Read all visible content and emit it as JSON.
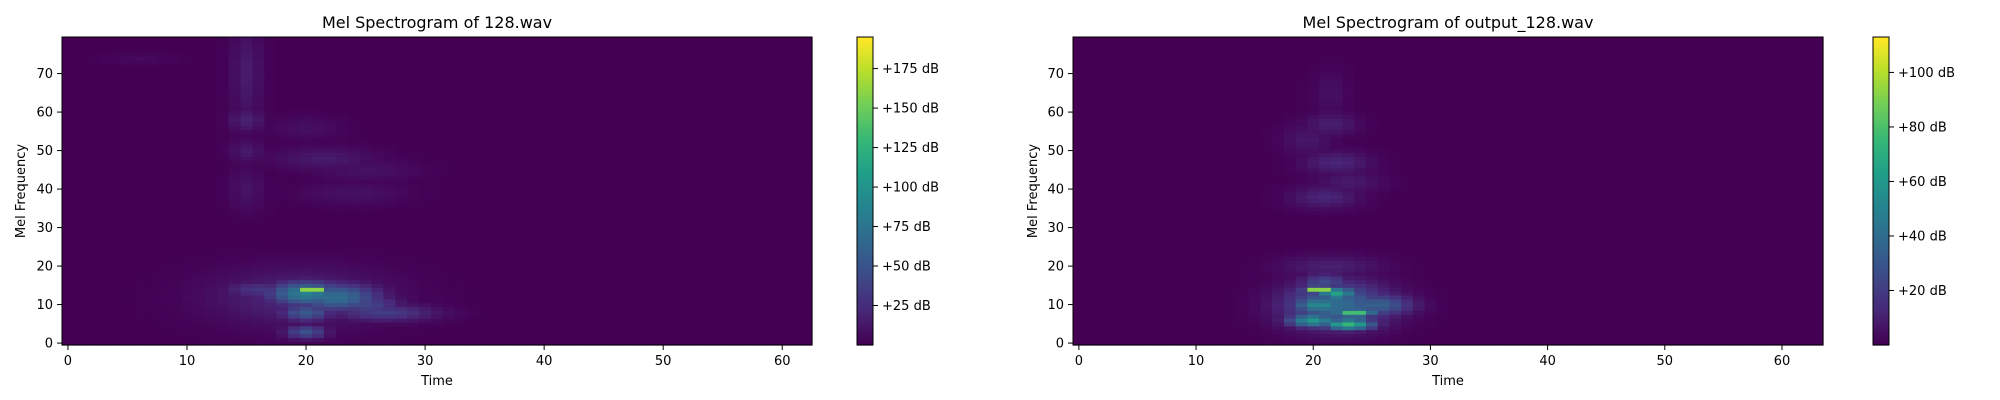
{
  "chart_data": [
    {
      "type": "heatmap",
      "title": "Mel Spectrogram of 128.wav",
      "xlabel": "Time",
      "ylabel": "Mel Frequency",
      "xlim": [
        -0.5,
        62.5
      ],
      "ylim": [
        -0.5,
        79.5
      ],
      "x_ticks": [
        0,
        10,
        20,
        30,
        40,
        50,
        60
      ],
      "y_ticks": [
        0,
        10,
        20,
        30,
        40,
        50,
        60,
        70
      ],
      "n_time": 63,
      "n_mel": 80,
      "colormap": "viridis",
      "colorbar": {
        "min": 0,
        "max": 195,
        "ticks": [
          25,
          50,
          75,
          100,
          125,
          150,
          175
        ],
        "tick_labels": [
          "+25 dB",
          "+50 dB",
          "+75 dB",
          "+100 dB",
          "+125 dB",
          "+150 dB",
          "+175 dB"
        ]
      },
      "hotspots": [
        {
          "t": 20.5,
          "m": 14,
          "st": 0.8,
          "sm": 0.6,
          "v": 195
        },
        {
          "t": 20,
          "m": 13,
          "st": 2.2,
          "sm": 2.2,
          "v": 85
        },
        {
          "t": 22.5,
          "m": 12,
          "st": 2.5,
          "sm": 2.5,
          "v": 70
        },
        {
          "t": 20,
          "m": 8,
          "st": 1.5,
          "sm": 1.5,
          "v": 55
        },
        {
          "t": 20,
          "m": 3,
          "st": 1.2,
          "sm": 1.2,
          "v": 50
        },
        {
          "t": 25,
          "m": 10,
          "st": 2,
          "sm": 2,
          "v": 40
        },
        {
          "t": 26.5,
          "m": 8,
          "st": 3,
          "sm": 1.5,
          "v": 35
        },
        {
          "t": 16,
          "m": 14,
          "st": 2,
          "sm": 1.5,
          "v": 30
        },
        {
          "t": 19.5,
          "m": 12,
          "st": 5,
          "sm": 5,
          "v": 22
        },
        {
          "t": 15,
          "m": 70,
          "st": 0.9,
          "sm": 9,
          "v": 14
        },
        {
          "t": 15,
          "m": 58,
          "st": 1,
          "sm": 2,
          "v": 18
        },
        {
          "t": 15,
          "m": 50,
          "st": 1,
          "sm": 2,
          "v": 14
        },
        {
          "t": 15,
          "m": 40,
          "st": 1,
          "sm": 4,
          "v": 10
        },
        {
          "t": 21.5,
          "m": 48,
          "st": 3,
          "sm": 2,
          "v": 14
        },
        {
          "t": 25,
          "m": 45,
          "st": 3,
          "sm": 2,
          "v": 9
        },
        {
          "t": 24,
          "m": 39,
          "st": 3,
          "sm": 2,
          "v": 9
        },
        {
          "t": 20,
          "m": 56,
          "st": 2,
          "sm": 2,
          "v": 8
        },
        {
          "t": 6,
          "m": 74,
          "st": 2,
          "sm": 1,
          "v": 5
        }
      ]
    },
    {
      "type": "heatmap",
      "title": "Mel Spectrogram of output_128.wav",
      "xlabel": "Time",
      "ylabel": "Mel Frequency",
      "xlim": [
        -0.5,
        63.5
      ],
      "ylim": [
        -0.5,
        79.5
      ],
      "x_ticks": [
        0,
        10,
        20,
        30,
        40,
        50,
        60
      ],
      "y_ticks": [
        0,
        10,
        20,
        30,
        40,
        50,
        60,
        70
      ],
      "n_time": 64,
      "n_mel": 80,
      "colormap": "viridis",
      "colorbar": {
        "min": 0,
        "max": 113,
        "ticks": [
          20,
          40,
          60,
          80,
          100
        ],
        "tick_labels": [
          "+20 dB",
          "+40 dB",
          "+60 dB",
          "+80 dB",
          "+100 dB"
        ]
      },
      "hotspots": [
        {
          "t": 20.5,
          "m": 14,
          "st": 0.8,
          "sm": 0.6,
          "v": 113
        },
        {
          "t": 22,
          "m": 13,
          "st": 1.2,
          "sm": 1.2,
          "v": 65
        },
        {
          "t": 20.5,
          "m": 10,
          "st": 1.5,
          "sm": 1.5,
          "v": 55
        },
        {
          "t": 23.5,
          "m": 8,
          "st": 1.2,
          "sm": 0.8,
          "v": 85
        },
        {
          "t": 23,
          "m": 5,
          "st": 1.5,
          "sm": 1,
          "v": 75
        },
        {
          "t": 20,
          "m": 6,
          "st": 1.5,
          "sm": 1.2,
          "v": 60
        },
        {
          "t": 22,
          "m": 10,
          "st": 3,
          "sm": 4,
          "v": 40
        },
        {
          "t": 25.5,
          "m": 10,
          "st": 2,
          "sm": 2,
          "v": 35
        },
        {
          "t": 21,
          "m": 16,
          "st": 1.5,
          "sm": 1.5,
          "v": 25
        },
        {
          "t": 21.5,
          "m": 20,
          "st": 3,
          "sm": 2,
          "v": 10
        },
        {
          "t": 22,
          "m": 47,
          "st": 2,
          "sm": 2,
          "v": 12
        },
        {
          "t": 21,
          "m": 38,
          "st": 2,
          "sm": 2,
          "v": 12
        },
        {
          "t": 21.5,
          "m": 57,
          "st": 1.5,
          "sm": 2,
          "v": 10
        },
        {
          "t": 23,
          "m": 42,
          "st": 2,
          "sm": 2,
          "v": 8
        },
        {
          "t": 19.5,
          "m": 53,
          "st": 1.5,
          "sm": 3,
          "v": 7
        },
        {
          "t": 21.5,
          "m": 65,
          "st": 1,
          "sm": 4,
          "v": 5
        }
      ]
    }
  ]
}
